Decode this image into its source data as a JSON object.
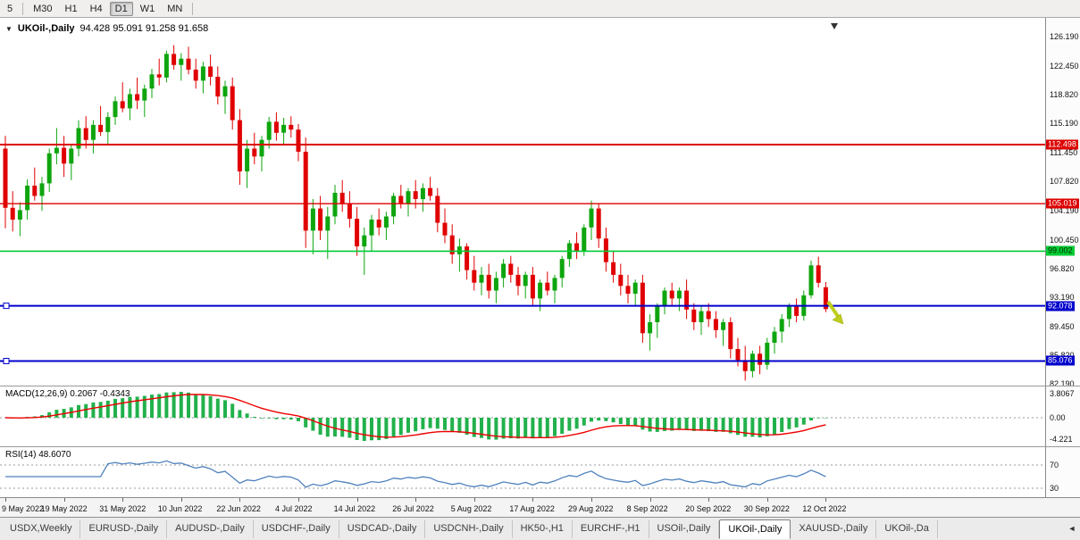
{
  "toolbar": {
    "periods": [
      {
        "label": "5",
        "active": false
      },
      {
        "label": "M30",
        "active": false
      },
      {
        "label": "H1",
        "active": false
      },
      {
        "label": "H4",
        "active": false
      },
      {
        "label": "D1",
        "active": true
      },
      {
        "label": "W1",
        "active": false
      },
      {
        "label": "MN",
        "active": false
      }
    ]
  },
  "chart_header": {
    "collapse_icon": "▼",
    "symbol_period": "UKOil-,Daily",
    "ohlc": "94.428 95.091 91.258 91.658"
  },
  "price_axis_ticks": [
    "126.190",
    "122.450",
    "118.820",
    "115.190",
    "111.450",
    "107.820",
    "104.190",
    "100.450",
    "96.820",
    "93.190",
    "89.450",
    "85.820",
    "82.190"
  ],
  "levels": [
    {
      "price": 112.498,
      "label": "112.498",
      "color": "#dd0000",
      "line_width": 2,
      "badge_text_color": "#ffffff",
      "handle": false
    },
    {
      "price": 105.019,
      "label": "105.019",
      "color": "#dd0000",
      "line_width": 1.4,
      "badge_text_color": "#ffffff",
      "handle": false
    },
    {
      "price": 99.002,
      "label": "99.002",
      "color": "#00cc33",
      "line_width": 1.6,
      "badge_text_color": "#002b00",
      "handle": false
    },
    {
      "price": 92.078,
      "label": "92.078",
      "color": "#0000cc",
      "line_width": 2,
      "badge_text_color": "#ffffff",
      "handle": true
    },
    {
      "price": 85.076,
      "label": "85.076",
      "color": "#0000cc",
      "line_width": 2,
      "badge_text_color": "#ffffff",
      "handle": true
    }
  ],
  "annotations": {
    "sell_arrow_color": "#bfcf1e",
    "sell_arrow_outline": "#8f9c00"
  },
  "macd_panel": {
    "label": "MACD(12,26,9) 0.2067 -0.4343",
    "axis_labels": {
      "max": "3.8067",
      "zero": "0.00",
      "min": "-4.221"
    },
    "histogram_color": "#22b14c",
    "signal_color": "#ee0000"
  },
  "rsi_panel": {
    "label": "RSI(14) 48.6070",
    "levels": [
      "70",
      "30"
    ],
    "line_color": "#4f81bd"
  },
  "tabs": {
    "scroll_left_icon": "◄",
    "items": [
      {
        "label": "USDX,Weekly",
        "active": false
      },
      {
        "label": "EURUSD-,Daily",
        "active": false
      },
      {
        "label": "AUDUSD-,Daily",
        "active": false
      },
      {
        "label": "USDCHF-,Daily",
        "active": false
      },
      {
        "label": "USDCAD-,Daily",
        "active": false
      },
      {
        "label": "USDCNH-,Daily",
        "active": false
      },
      {
        "label": "HK50-,H1",
        "active": false
      },
      {
        "label": "EURCHF-,H1",
        "active": false
      },
      {
        "label": "USOil-,Daily",
        "active": false
      },
      {
        "label": "UKOil-,Daily",
        "active": true
      },
      {
        "label": "XAUUSD-,Daily",
        "active": false
      },
      {
        "label": "UKOil-,Da",
        "active": false
      }
    ]
  },
  "chart_data": {
    "type": "candlestick",
    "symbol": "UKOil-",
    "timeframe": "Daily",
    "current_ohlc": {
      "open": "94.428",
      "high": "95.091",
      "low": "91.258",
      "close": "91.658"
    },
    "y_axis_range": [
      82.19,
      126.19
    ],
    "candle_up_color": "#0ea50e",
    "candle_down_color": "#e00000",
    "horizontal_levels": [
      112.498,
      105.019,
      99.002,
      92.078,
      85.076
    ],
    "x_axis_dates": [
      {
        "label": "9 May 2022",
        "i": 0
      },
      {
        "label": "19 May 2022",
        "i": 8
      },
      {
        "label": "31 May 2022",
        "i": 16
      },
      {
        "label": "10 Jun 2022",
        "i": 24
      },
      {
        "label": "22 Jun 2022",
        "i": 32
      },
      {
        "label": "4 Jul 2022",
        "i": 40
      },
      {
        "label": "14 Jul 2022",
        "i": 48
      },
      {
        "label": "26 Jul 2022",
        "i": 56
      },
      {
        "label": "5 Aug 2022",
        "i": 64
      },
      {
        "label": "17 Aug 2022",
        "i": 72
      },
      {
        "label": "29 Aug 2022",
        "i": 80
      },
      {
        "label": "8 Sep 2022",
        "i": 88
      },
      {
        "label": "20 Sep 2022",
        "i": 96
      },
      {
        "label": "30 Sep 2022",
        "i": 104
      },
      {
        "label": "12 Oct 2022",
        "i": 112
      }
    ],
    "candles": [
      [
        112.0,
        113.6,
        101.9,
        104.5
      ],
      [
        104.5,
        106.6,
        101.5,
        103.0
      ],
      [
        103.0,
        105.2,
        100.9,
        104.2
      ],
      [
        104.2,
        108.1,
        103.0,
        107.3
      ],
      [
        107.3,
        109.6,
        105.4,
        106.0
      ],
      [
        106.0,
        108.4,
        104.1,
        107.6
      ],
      [
        107.6,
        112.0,
        106.5,
        111.4
      ],
      [
        111.4,
        114.6,
        110.0,
        112.1
      ],
      [
        112.1,
        113.6,
        108.4,
        110.1
      ],
      [
        110.1,
        112.4,
        108.0,
        112.0
      ],
      [
        112.0,
        115.6,
        111.0,
        114.6
      ],
      [
        114.6,
        116.1,
        112.0,
        113.1
      ],
      [
        113.1,
        115.6,
        111.4,
        115.0
      ],
      [
        115.0,
        117.4,
        113.6,
        114.1
      ],
      [
        114.1,
        116.6,
        112.4,
        116.0
      ],
      [
        116.0,
        118.6,
        115.0,
        118.0
      ],
      [
        118.0,
        120.4,
        116.6,
        117.1
      ],
      [
        117.1,
        119.6,
        115.6,
        118.9
      ],
      [
        118.9,
        121.0,
        117.0,
        118.1
      ],
      [
        118.1,
        120.1,
        116.0,
        119.6
      ],
      [
        119.6,
        122.1,
        118.4,
        121.4
      ],
      [
        121.4,
        123.4,
        120.0,
        121.0
      ],
      [
        121.0,
        124.4,
        120.4,
        124.0
      ],
      [
        124.0,
        125.1,
        122.0,
        122.6
      ],
      [
        122.6,
        124.1,
        120.6,
        123.4
      ],
      [
        123.4,
        124.9,
        121.4,
        122.0
      ],
      [
        122.0,
        123.4,
        119.6,
        120.6
      ],
      [
        120.6,
        123.0,
        119.0,
        122.4
      ],
      [
        122.4,
        123.9,
        120.0,
        121.1
      ],
      [
        121.1,
        122.4,
        117.6,
        118.6
      ],
      [
        118.6,
        120.6,
        116.4,
        119.9
      ],
      [
        119.9,
        121.0,
        114.4,
        115.6
      ],
      [
        115.6,
        117.0,
        107.4,
        109.1
      ],
      [
        109.1,
        113.1,
        107.0,
        112.0
      ],
      [
        112.0,
        114.0,
        110.0,
        111.0
      ],
      [
        111.0,
        113.6,
        109.1,
        113.1
      ],
      [
        113.1,
        116.0,
        112.0,
        115.4
      ],
      [
        115.4,
        116.6,
        113.0,
        114.0
      ],
      [
        114.0,
        115.9,
        112.4,
        115.0
      ],
      [
        115.0,
        116.1,
        113.4,
        114.4
      ],
      [
        114.4,
        115.1,
        110.4,
        111.6
      ],
      [
        111.6,
        113.4,
        99.4,
        101.6
      ],
      [
        101.6,
        105.6,
        98.6,
        104.4
      ],
      [
        104.4,
        106.0,
        100.4,
        101.6
      ],
      [
        101.6,
        104.6,
        98.0,
        103.4
      ],
      [
        103.4,
        107.4,
        102.4,
        106.4
      ],
      [
        106.4,
        108.0,
        104.0,
        105.0
      ],
      [
        105.0,
        106.6,
        102.0,
        103.1
      ],
      [
        103.1,
        104.6,
        98.4,
        99.6
      ],
      [
        99.6,
        102.0,
        96.0,
        101.0
      ],
      [
        101.0,
        103.6,
        99.0,
        103.0
      ],
      [
        103.0,
        104.4,
        101.0,
        102.0
      ],
      [
        102.0,
        104.0,
        100.4,
        103.4
      ],
      [
        103.4,
        106.4,
        102.4,
        106.0
      ],
      [
        106.0,
        107.4,
        104.4,
        105.0
      ],
      [
        105.0,
        107.0,
        103.4,
        106.6
      ],
      [
        106.6,
        108.0,
        104.4,
        105.6
      ],
      [
        105.6,
        107.6,
        104.0,
        107.0
      ],
      [
        107.0,
        108.4,
        105.4,
        106.0
      ],
      [
        106.0,
        107.0,
        101.4,
        102.6
      ],
      [
        102.6,
        104.4,
        100.0,
        101.0
      ],
      [
        101.0,
        102.4,
        97.4,
        98.6
      ],
      [
        98.6,
        100.6,
        96.4,
        99.6
      ],
      [
        99.6,
        100.0,
        95.4,
        96.6
      ],
      [
        96.6,
        98.4,
        94.0,
        95.0
      ],
      [
        95.0,
        97.0,
        93.4,
        96.0
      ],
      [
        96.0,
        97.4,
        93.0,
        94.0
      ],
      [
        94.0,
        96.4,
        92.4,
        95.6
      ],
      [
        95.6,
        98.0,
        94.4,
        97.4
      ],
      [
        97.4,
        98.4,
        95.0,
        96.0
      ],
      [
        96.0,
        97.0,
        93.4,
        94.6
      ],
      [
        94.6,
        96.4,
        93.0,
        96.0
      ],
      [
        96.0,
        97.0,
        92.0,
        93.0
      ],
      [
        93.0,
        95.4,
        91.4,
        95.0
      ],
      [
        95.0,
        96.4,
        93.4,
        94.0
      ],
      [
        94.0,
        96.0,
        92.4,
        95.6
      ],
      [
        95.6,
        98.4,
        94.4,
        98.0
      ],
      [
        98.0,
        100.4,
        97.0,
        100.0
      ],
      [
        100.0,
        101.4,
        98.0,
        99.0
      ],
      [
        99.0,
        102.4,
        98.4,
        102.0
      ],
      [
        102.0,
        105.4,
        100.4,
        104.4
      ],
      [
        104.4,
        105.0,
        99.4,
        100.6
      ],
      [
        100.6,
        102.0,
        96.4,
        97.6
      ],
      [
        97.6,
        99.0,
        95.0,
        96.0
      ],
      [
        96.0,
        97.4,
        93.4,
        94.6
      ],
      [
        94.6,
        96.0,
        92.4,
        93.6
      ],
      [
        93.6,
        95.4,
        92.0,
        95.0
      ],
      [
        95.0,
        96.0,
        87.4,
        88.6
      ],
      [
        88.6,
        91.0,
        86.4,
        90.0
      ],
      [
        90.0,
        92.4,
        88.0,
        92.0
      ],
      [
        92.0,
        94.4,
        91.0,
        94.0
      ],
      [
        94.0,
        95.0,
        92.0,
        93.0
      ],
      [
        93.0,
        94.4,
        91.4,
        94.0
      ],
      [
        94.0,
        95.4,
        90.4,
        91.6
      ],
      [
        91.6,
        92.4,
        89.0,
        90.0
      ],
      [
        90.0,
        92.0,
        88.4,
        91.4
      ],
      [
        91.4,
        92.4,
        89.4,
        90.4
      ],
      [
        90.4,
        91.4,
        88.0,
        89.0
      ],
      [
        89.0,
        90.4,
        87.0,
        90.0
      ],
      [
        90.0,
        90.6,
        85.4,
        86.6
      ],
      [
        86.6,
        88.0,
        84.4,
        85.2
      ],
      [
        85.2,
        87.0,
        82.6,
        83.8
      ],
      [
        83.8,
        86.4,
        83.0,
        86.0
      ],
      [
        86.0,
        87.0,
        83.4,
        84.6
      ],
      [
        84.6,
        88.0,
        84.0,
        87.4
      ],
      [
        87.4,
        89.4,
        86.0,
        88.8
      ],
      [
        88.8,
        91.0,
        87.4,
        90.4
      ],
      [
        90.4,
        92.4,
        89.4,
        92.0
      ],
      [
        92.0,
        93.0,
        90.0,
        90.8
      ],
      [
        90.8,
        94.0,
        90.2,
        93.4
      ],
      [
        93.4,
        97.8,
        93.0,
        97.2
      ],
      [
        97.2,
        98.3,
        94.4,
        95.0
      ],
      [
        94.428,
        95.091,
        91.258,
        91.658
      ]
    ],
    "indicators": [
      {
        "name": "MACD",
        "params": "12,26,9",
        "current_values": "0.2067 -0.4343"
      },
      {
        "name": "RSI",
        "params": "14",
        "current_value": "48.6070"
      }
    ]
  }
}
